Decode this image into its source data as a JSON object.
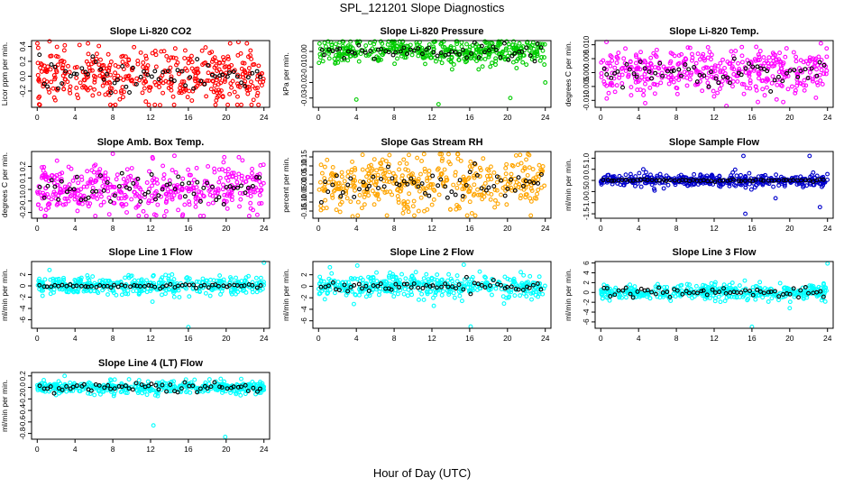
{
  "figure": {
    "title": "SPL_121201  Slope Diagnostics",
    "xlabel": "Hour of Day (UTC)"
  },
  "chart_data": [
    {
      "type": "scatter",
      "title": "Slope Li-820 CO2",
      "ylabel": "Licor ppm per min.",
      "xticks": [
        0,
        4,
        8,
        12,
        16,
        20,
        24
      ],
      "xlim": [
        -0.6,
        24.6
      ],
      "yticks": [
        -0.2,
        0.0,
        0.2,
        0.4
      ],
      "ytick_labels": [
        "-0.2",
        "0.0",
        "0.2",
        "0.4"
      ],
      "ylim": [
        -0.42,
        0.48
      ],
      "color": "#ff0000",
      "spread": 0.2,
      "outliers": [
        [
          0.2,
          -0.38
        ],
        [
          1.3,
          0.47
        ],
        [
          13,
          -0.39
        ],
        [
          21.3,
          0.46
        ],
        [
          8,
          -0.4
        ]
      ],
      "black_spread": 0.15
    },
    {
      "type": "scatter",
      "title": "Slope Li-820 Pressure",
      "ylabel": "kPa per min.",
      "xticks": [
        0,
        4,
        8,
        12,
        16,
        20,
        24
      ],
      "xlim": [
        -0.6,
        24.6
      ],
      "yticks": [
        -0.03,
        -0.02,
        -0.01,
        0.0
      ],
      "ytick_labels": [
        "-0.03",
        "-0.02",
        "-0.01",
        "0.00"
      ],
      "ylim": [
        -0.036,
        0.007
      ],
      "color": "#00cc00",
      "spread": 0.0045,
      "outliers": [
        [
          4,
          -0.031
        ],
        [
          12.7,
          -0.034
        ],
        [
          20.3,
          -0.03
        ],
        [
          24,
          -0.02
        ]
      ],
      "black_spread": 0.003
    },
    {
      "type": "scatter",
      "title": "Slope Li-820 Temp.",
      "ylabel": "degrees C per min.",
      "xticks": [
        0,
        4,
        8,
        12,
        16,
        20,
        24
      ],
      "xlim": [
        -0.6,
        24.6
      ],
      "yticks": [
        -0.01,
        -0.005,
        0.0,
        0.005,
        0.01
      ],
      "ytick_labels": [
        "-0.010",
        "-0.005",
        "0.000",
        "0.005",
        "0.010"
      ],
      "ylim": [
        -0.0125,
        0.0115
      ],
      "color": "#ff00ff",
      "spread": 0.0045,
      "outliers": [
        [
          0.6,
          0.011
        ],
        [
          4.7,
          -0.011
        ],
        [
          13.3,
          -0.012
        ],
        [
          23.3,
          0.0105
        ]
      ],
      "black_spread": 0.003
    },
    {
      "type": "scatter",
      "title": "Slope Amb. Box Temp.",
      "ylabel": "degrees C per min.",
      "xticks": [
        0,
        4,
        8,
        12,
        16,
        20,
        24
      ],
      "xlim": [
        -0.6,
        24.6
      ],
      "yticks": [
        -0.2,
        -0.1,
        0.0,
        0.1,
        0.2
      ],
      "ytick_labels": [
        "-0.2",
        "-0.1",
        "0.0",
        "0.1",
        "0.2"
      ],
      "ylim": [
        -0.25,
        0.33
      ],
      "color": "#ff00ff",
      "spread": 0.12,
      "outliers": [
        [
          8,
          0.31
        ],
        [
          12.2,
          0.28
        ],
        [
          19.8,
          0.28
        ],
        [
          23.3,
          -0.22
        ]
      ],
      "black_spread": 0.09
    },
    {
      "type": "scatter",
      "title": "Slope Gas Stream RH",
      "ylabel": "percent per min.",
      "xticks": [
        0,
        4,
        8,
        12,
        16,
        20,
        24
      ],
      "xlim": [
        -0.6,
        24.6
      ],
      "yticks": [
        -0.15,
        -0.1,
        -0.05,
        0.0,
        0.05,
        0.1,
        0.15
      ],
      "ytick_labels": [
        "-0.15",
        "-0.10",
        "-0.05",
        "0.00",
        "0.05",
        "0.10",
        "0.15"
      ],
      "ylim": [
        -0.19,
        0.18
      ],
      "color": "#ffa500",
      "spread": 0.085,
      "outliers": [
        [
          3.6,
          -0.18
        ],
        [
          7.5,
          0.16
        ],
        [
          22.3,
          0.16
        ]
      ],
      "black_spread": 0.05
    },
    {
      "type": "scatter",
      "title": "Slope Sample Flow",
      "ylabel": "ml/min per min.",
      "xticks": [
        0,
        4,
        8,
        12,
        16,
        20,
        24
      ],
      "xlim": [
        -0.6,
        24.6
      ],
      "yticks": [
        -1.5,
        -1.0,
        -0.5,
        0.0,
        0.5,
        1.0
      ],
      "ytick_labels": [
        "-1.5",
        "-1.0",
        "-0.5",
        "0.0",
        "0.5",
        "1.0"
      ],
      "ylim": [
        -1.7,
        1.3
      ],
      "color": "#0000cc",
      "spread": 0.15,
      "outliers": [
        [
          15.1,
          1.1
        ],
        [
          15.3,
          -1.5
        ],
        [
          22.1,
          1.1
        ],
        [
          23.2,
          -1.2
        ],
        [
          4.5,
          0.5
        ],
        [
          18.5,
          -0.8
        ]
      ],
      "black_spread": 0.03
    },
    {
      "type": "scatter",
      "title": "Slope Line 1 Flow",
      "ylabel": "ml/min per min.",
      "xticks": [
        0,
        4,
        8,
        12,
        16,
        20,
        24
      ],
      "xlim": [
        -0.6,
        24.6
      ],
      "yticks": [
        -6,
        -4,
        -2,
        0,
        2
      ],
      "ytick_labels": [
        "-6",
        "-4",
        "-2",
        "0",
        "2"
      ],
      "ylim": [
        -7.5,
        4.3
      ],
      "color": "#00ffff",
      "spread": 0.9,
      "outliers": [
        [
          16,
          -7.3
        ],
        [
          24,
          4.1
        ],
        [
          1.3,
          2.8
        ],
        [
          12.2,
          -2.8
        ]
      ],
      "black_spread": 0.2
    },
    {
      "type": "scatter",
      "title": "Slope Line 2 Flow",
      "ylabel": "ml/min per min.",
      "xticks": [
        0,
        4,
        8,
        12,
        16,
        20,
        24
      ],
      "xlim": [
        -0.6,
        24.6
      ],
      "yticks": [
        -6,
        -4,
        -2,
        0,
        2
      ],
      "ytick_labels": [
        "-6",
        "-4",
        "-2",
        "0",
        "2"
      ],
      "ylim": [
        -7.3,
        4.3
      ],
      "color": "#00ffff",
      "spread": 1.1,
      "outliers": [
        [
          16.1,
          -7.0
        ],
        [
          4.1,
          3.6
        ],
        [
          12.2,
          -3.4
        ],
        [
          1.2,
          3.3
        ]
      ],
      "black_spread": 0.6
    },
    {
      "type": "scatter",
      "title": "Slope Line 3 Flow",
      "ylabel": "ml/min per min.",
      "xticks": [
        0,
        4,
        8,
        12,
        16,
        20,
        24
      ],
      "xlim": [
        -0.6,
        24.6
      ],
      "yticks": [
        -6,
        -4,
        -2,
        0,
        2,
        4,
        6
      ],
      "ytick_labels": [
        "-6",
        "-4",
        "-2",
        "0",
        "2",
        "4",
        "6"
      ],
      "ylim": [
        -7.3,
        6.3
      ],
      "color": "#00ffff",
      "spread": 0.9,
      "outliers": [
        [
          16,
          -7.0
        ],
        [
          24,
          5.9
        ],
        [
          20,
          -3.2
        ]
      ],
      "black_spread": 0.6
    },
    {
      "type": "scatter",
      "title": "Slope Line 4 (LT) Flow",
      "ylabel": "ml/min per min.",
      "xticks": [
        0,
        4,
        8,
        12,
        16,
        20,
        24
      ],
      "xlim": [
        -0.6,
        24.6
      ],
      "yticks": [
        -0.8,
        -0.6,
        -0.4,
        -0.2,
        0.0,
        0.2
      ],
      "ytick_labels": [
        "-0.8",
        "-0.6",
        "-0.4",
        "-0.2",
        "0.0",
        "0.2"
      ],
      "ylim": [
        -0.9,
        0.26
      ],
      "color": "#00ffff",
      "spread": 0.06,
      "outliers": [
        [
          12.3,
          -0.66
        ],
        [
          19.9,
          -0.86
        ],
        [
          2.9,
          0.2
        ]
      ],
      "black_spread": 0.05
    }
  ]
}
